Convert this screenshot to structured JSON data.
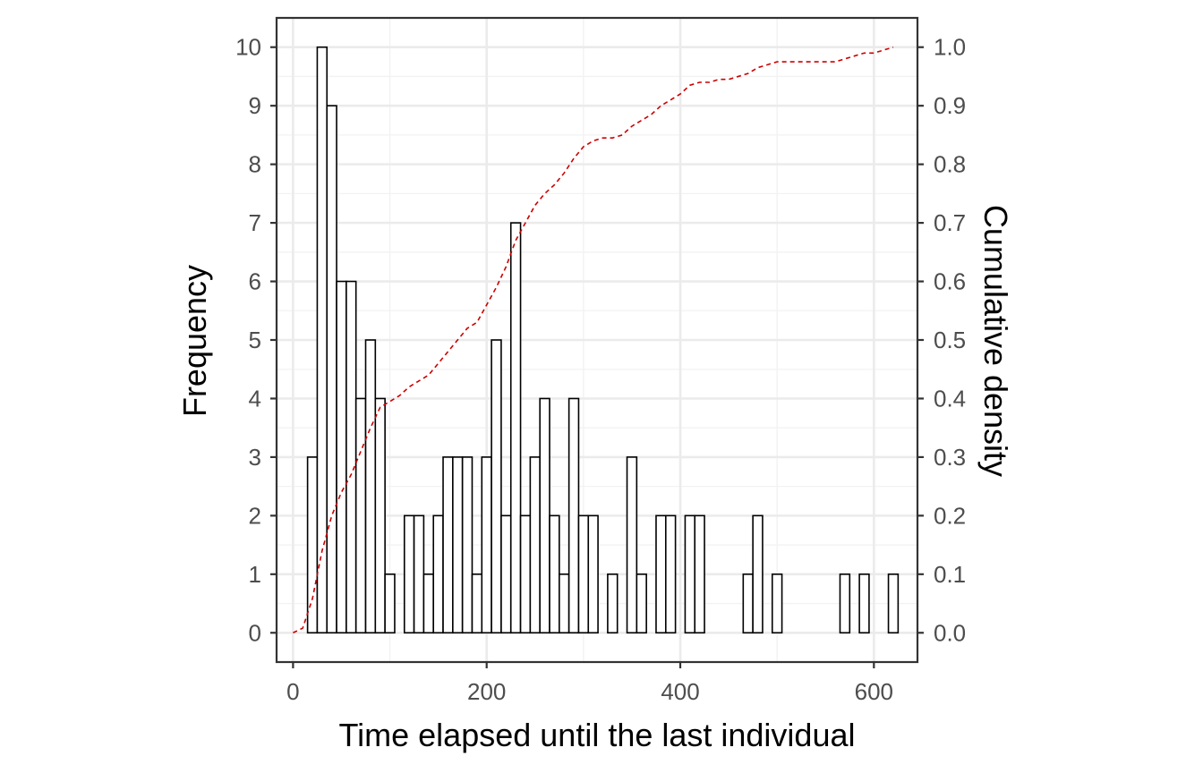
{
  "chart_data": {
    "type": "bar",
    "title": "",
    "xlabel": "Time elapsed until the last individual",
    "ylabel": "Frequency",
    "y2label": "Cumulative density",
    "bin_width": 10,
    "bin_start": -5,
    "xlim": [
      -17,
      645
    ],
    "ylim": [
      -0.5,
      10.5
    ],
    "y2lim": [
      -0.05,
      1.05
    ],
    "x_ticks": [
      0,
      200,
      400,
      600
    ],
    "y_ticks": [
      0,
      1,
      2,
      3,
      4,
      5,
      6,
      7,
      8,
      9,
      10
    ],
    "y2_ticks": [
      "0.0",
      "0.1",
      "0.2",
      "0.3",
      "0.4",
      "0.5",
      "0.6",
      "0.7",
      "0.8",
      "0.9",
      "1.0"
    ],
    "bins": {
      "bin_centers": [
        0,
        10,
        20,
        30,
        40,
        50,
        60,
        70,
        80,
        90,
        100,
        110,
        120,
        130,
        140,
        150,
        160,
        170,
        180,
        190,
        200,
        210,
        220,
        230,
        240,
        250,
        260,
        270,
        280,
        290,
        300,
        310,
        320,
        330,
        340,
        350,
        360,
        370,
        380,
        390,
        400,
        410,
        420,
        430,
        440,
        450,
        460,
        470,
        480,
        490,
        500,
        510,
        520,
        530,
        540,
        550,
        560,
        570,
        580,
        590,
        600,
        610,
        620
      ],
      "counts": [
        0,
        0,
        3,
        10,
        9,
        6,
        6,
        4,
        5,
        4,
        1,
        0,
        2,
        2,
        1,
        2,
        3,
        3,
        3,
        1,
        3,
        5,
        2,
        7,
        2,
        3,
        4,
        2,
        1,
        4,
        2,
        2,
        0,
        1,
        0,
        3,
        1,
        0,
        2,
        2,
        0,
        2,
        2,
        0,
        0,
        0,
        0,
        1,
        2,
        0,
        1,
        0,
        0,
        0,
        0,
        0,
        0,
        1,
        0,
        1,
        0,
        0,
        1
      ]
    },
    "series": [
      {
        "name": "Cumulative density",
        "style": "dashed",
        "color": "#cc0000",
        "x": [
          0,
          10,
          20,
          30,
          40,
          50,
          60,
          70,
          80,
          90,
          100,
          110,
          120,
          130,
          140,
          150,
          160,
          170,
          180,
          190,
          200,
          210,
          220,
          230,
          240,
          250,
          260,
          270,
          280,
          290,
          300,
          310,
          320,
          330,
          340,
          350,
          360,
          370,
          380,
          390,
          400,
          410,
          420,
          430,
          440,
          450,
          460,
          470,
          480,
          490,
          500,
          510,
          520,
          530,
          540,
          550,
          560,
          570,
          580,
          590,
          600,
          610,
          620
        ],
        "y": [
          0,
          0.008,
          0.058,
          0.14,
          0.2,
          0.24,
          0.27,
          0.31,
          0.35,
          0.385,
          0.395,
          0.405,
          0.42,
          0.43,
          0.44,
          0.46,
          0.48,
          0.5,
          0.52,
          0.53,
          0.56,
          0.59,
          0.625,
          0.67,
          0.7,
          0.73,
          0.75,
          0.765,
          0.785,
          0.81,
          0.83,
          0.84,
          0.845,
          0.845,
          0.85,
          0.865,
          0.875,
          0.885,
          0.9,
          0.91,
          0.92,
          0.935,
          0.94,
          0.94,
          0.945,
          0.945,
          0.95,
          0.955,
          0.965,
          0.97,
          0.975,
          0.975,
          0.975,
          0.975,
          0.975,
          0.975,
          0.975,
          0.98,
          0.985,
          0.99,
          0.99,
          0.995,
          1.0
        ]
      }
    ],
    "colors": {
      "bar_fill": "#ffffff",
      "bar_stroke": "#000000",
      "grid_major": "#ebebeb",
      "grid_minor": "#f2f2f2",
      "panel_border": "#333333",
      "tick_text": "#4d4d4d"
    },
    "grid": true,
    "legend": "none"
  }
}
